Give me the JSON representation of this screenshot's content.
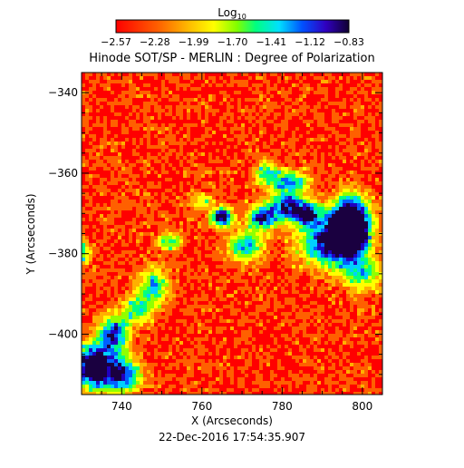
{
  "chart_data": {
    "type": "heatmap",
    "title": "Hinode SOT/SP - MERLIN : Degree of Polarization",
    "xlabel": "X (Arcseconds)",
    "ylabel": "Y (Arcseconds)",
    "xlim": [
      730,
      805
    ],
    "ylim": [
      -415,
      -335
    ],
    "x_ticks": [
      740,
      760,
      780,
      800
    ],
    "y_ticks": [
      -340,
      -360,
      -380,
      -400
    ],
    "timestamp": "22-Dec-2016 17:54:35.907",
    "colorbar": {
      "label_base": "Log",
      "label_sub": "10",
      "range": [
        -2.57,
        -0.83
      ],
      "tick_labels": [
        "−2.57",
        "−2.28",
        "−1.99",
        "−1.70",
        "−1.41",
        "−1.12",
        "−0.83"
      ]
    },
    "x_tick_labels": [
      "740",
      "760",
      "780",
      "800"
    ],
    "y_tick_labels": [
      "−340",
      "−360",
      "−380",
      "−400"
    ],
    "colors": [
      "#ff0000",
      "#ff6000",
      "#ffb000",
      "#ffff00",
      "#90ff00",
      "#00ff80",
      "#00d0ff",
      "#0060ff",
      "#2000c0",
      "#1a0040"
    ],
    "features": [
      {
        "x": 797,
        "y": -373,
        "sx": 3.0,
        "sy": 4.5,
        "amp": 1.6
      },
      {
        "x": 792,
        "y": -377,
        "sx": 5.0,
        "sy": 4.0,
        "amp": 0.9
      },
      {
        "x": 786,
        "y": -370,
        "sx": 2.5,
        "sy": 2.0,
        "amp": 0.8
      },
      {
        "x": 781,
        "y": -368,
        "sx": 3.0,
        "sy": 2.5,
        "amp": 0.7
      },
      {
        "x": 775,
        "y": -371,
        "sx": 2.5,
        "sy": 2.0,
        "amp": 0.8
      },
      {
        "x": 765,
        "y": -371,
        "sx": 1.8,
        "sy": 1.6,
        "amp": 0.9
      },
      {
        "x": 771,
        "y": -378,
        "sx": 3.0,
        "sy": 2.5,
        "amp": 0.6
      },
      {
        "x": 776,
        "y": -360,
        "sx": 2.0,
        "sy": 2.0,
        "amp": 0.5
      },
      {
        "x": 782,
        "y": -362,
        "sx": 3.0,
        "sy": 2.0,
        "amp": 0.55
      },
      {
        "x": 752,
        "y": -377,
        "sx": 2.0,
        "sy": 1.5,
        "amp": 0.5
      },
      {
        "x": 748,
        "y": -388,
        "sx": 2.5,
        "sy": 3.0,
        "amp": 0.55
      },
      {
        "x": 744,
        "y": -394,
        "sx": 2.5,
        "sy": 2.5,
        "amp": 0.5
      },
      {
        "x": 738,
        "y": -400,
        "sx": 2.5,
        "sy": 3.0,
        "amp": 0.8
      },
      {
        "x": 733,
        "y": -408,
        "sx": 3.0,
        "sy": 3.5,
        "amp": 1.2
      },
      {
        "x": 740,
        "y": -410,
        "sx": 3.0,
        "sy": 3.0,
        "amp": 0.8
      },
      {
        "x": 730,
        "y": -380,
        "sx": 1.5,
        "sy": 2.0,
        "amp": 0.45
      },
      {
        "x": 760,
        "y": -367,
        "sx": 2.0,
        "sy": 1.5,
        "amp": 0.35
      },
      {
        "x": 800,
        "y": -385,
        "sx": 3.5,
        "sy": 3.0,
        "amp": 0.45
      }
    ]
  }
}
